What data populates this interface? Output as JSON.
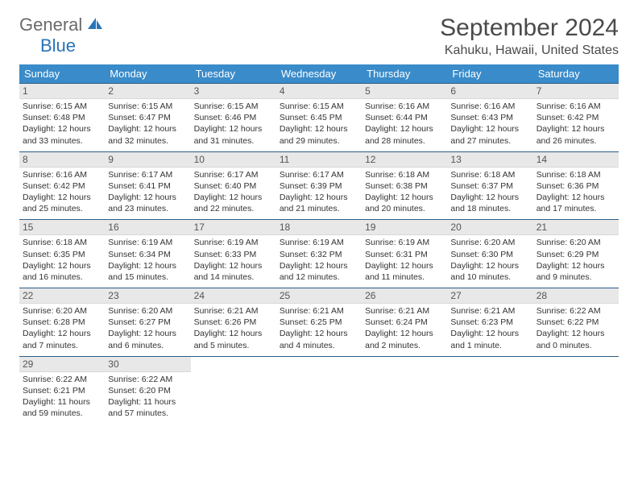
{
  "logo": {
    "word1": "General",
    "word2": "Blue"
  },
  "title": "September 2024",
  "location": "Kahuku, Hawaii, United States",
  "colors": {
    "header_bg": "#3a8bc9",
    "header_text": "#ffffff",
    "row_border": "#2b5d86",
    "daynum_bg": "#e8e8e8",
    "text": "#333333",
    "logo_grey": "#6a6a6a",
    "logo_blue": "#2874b8",
    "page_bg": "#ffffff"
  },
  "typography": {
    "title_fontsize": 30,
    "location_fontsize": 16,
    "header_fontsize": 13,
    "info_fontsize": 10.5
  },
  "table": {
    "columns": [
      "Sunday",
      "Monday",
      "Tuesday",
      "Wednesday",
      "Thursday",
      "Friday",
      "Saturday"
    ],
    "weeks": [
      [
        {
          "day": "1",
          "sunrise": "6:15 AM",
          "sunset": "6:48 PM",
          "daylight": "12 hours and 33 minutes."
        },
        {
          "day": "2",
          "sunrise": "6:15 AM",
          "sunset": "6:47 PM",
          "daylight": "12 hours and 32 minutes."
        },
        {
          "day": "3",
          "sunrise": "6:15 AM",
          "sunset": "6:46 PM",
          "daylight": "12 hours and 31 minutes."
        },
        {
          "day": "4",
          "sunrise": "6:15 AM",
          "sunset": "6:45 PM",
          "daylight": "12 hours and 29 minutes."
        },
        {
          "day": "5",
          "sunrise": "6:16 AM",
          "sunset": "6:44 PM",
          "daylight": "12 hours and 28 minutes."
        },
        {
          "day": "6",
          "sunrise": "6:16 AM",
          "sunset": "6:43 PM",
          "daylight": "12 hours and 27 minutes."
        },
        {
          "day": "7",
          "sunrise": "6:16 AM",
          "sunset": "6:42 PM",
          "daylight": "12 hours and 26 minutes."
        }
      ],
      [
        {
          "day": "8",
          "sunrise": "6:16 AM",
          "sunset": "6:42 PM",
          "daylight": "12 hours and 25 minutes."
        },
        {
          "day": "9",
          "sunrise": "6:17 AM",
          "sunset": "6:41 PM",
          "daylight": "12 hours and 23 minutes."
        },
        {
          "day": "10",
          "sunrise": "6:17 AM",
          "sunset": "6:40 PM",
          "daylight": "12 hours and 22 minutes."
        },
        {
          "day": "11",
          "sunrise": "6:17 AM",
          "sunset": "6:39 PM",
          "daylight": "12 hours and 21 minutes."
        },
        {
          "day": "12",
          "sunrise": "6:18 AM",
          "sunset": "6:38 PM",
          "daylight": "12 hours and 20 minutes."
        },
        {
          "day": "13",
          "sunrise": "6:18 AM",
          "sunset": "6:37 PM",
          "daylight": "12 hours and 18 minutes."
        },
        {
          "day": "14",
          "sunrise": "6:18 AM",
          "sunset": "6:36 PM",
          "daylight": "12 hours and 17 minutes."
        }
      ],
      [
        {
          "day": "15",
          "sunrise": "6:18 AM",
          "sunset": "6:35 PM",
          "daylight": "12 hours and 16 minutes."
        },
        {
          "day": "16",
          "sunrise": "6:19 AM",
          "sunset": "6:34 PM",
          "daylight": "12 hours and 15 minutes."
        },
        {
          "day": "17",
          "sunrise": "6:19 AM",
          "sunset": "6:33 PM",
          "daylight": "12 hours and 14 minutes."
        },
        {
          "day": "18",
          "sunrise": "6:19 AM",
          "sunset": "6:32 PM",
          "daylight": "12 hours and 12 minutes."
        },
        {
          "day": "19",
          "sunrise": "6:19 AM",
          "sunset": "6:31 PM",
          "daylight": "12 hours and 11 minutes."
        },
        {
          "day": "20",
          "sunrise": "6:20 AM",
          "sunset": "6:30 PM",
          "daylight": "12 hours and 10 minutes."
        },
        {
          "day": "21",
          "sunrise": "6:20 AM",
          "sunset": "6:29 PM",
          "daylight": "12 hours and 9 minutes."
        }
      ],
      [
        {
          "day": "22",
          "sunrise": "6:20 AM",
          "sunset": "6:28 PM",
          "daylight": "12 hours and 7 minutes."
        },
        {
          "day": "23",
          "sunrise": "6:20 AM",
          "sunset": "6:27 PM",
          "daylight": "12 hours and 6 minutes."
        },
        {
          "day": "24",
          "sunrise": "6:21 AM",
          "sunset": "6:26 PM",
          "daylight": "12 hours and 5 minutes."
        },
        {
          "day": "25",
          "sunrise": "6:21 AM",
          "sunset": "6:25 PM",
          "daylight": "12 hours and 4 minutes."
        },
        {
          "day": "26",
          "sunrise": "6:21 AM",
          "sunset": "6:24 PM",
          "daylight": "12 hours and 2 minutes."
        },
        {
          "day": "27",
          "sunrise": "6:21 AM",
          "sunset": "6:23 PM",
          "daylight": "12 hours and 1 minute."
        },
        {
          "day": "28",
          "sunrise": "6:22 AM",
          "sunset": "6:22 PM",
          "daylight": "12 hours and 0 minutes."
        }
      ],
      [
        {
          "day": "29",
          "sunrise": "6:22 AM",
          "sunset": "6:21 PM",
          "daylight": "11 hours and 59 minutes."
        },
        {
          "day": "30",
          "sunrise": "6:22 AM",
          "sunset": "6:20 PM",
          "daylight": "11 hours and 57 minutes."
        },
        null,
        null,
        null,
        null,
        null
      ]
    ],
    "labels": {
      "sunrise": "Sunrise:",
      "sunset": "Sunset:",
      "daylight": "Daylight:"
    }
  }
}
